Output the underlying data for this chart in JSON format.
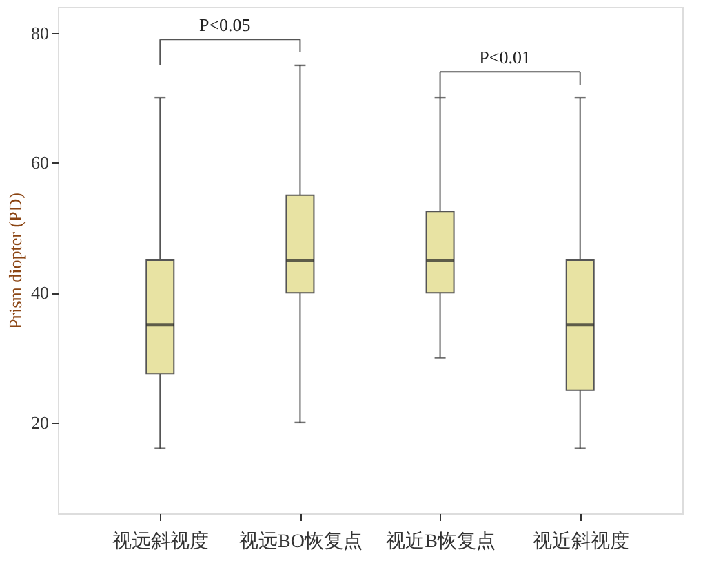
{
  "chart_data": {
    "type": "box",
    "ylabel": "Prism diopter (PD)",
    "categories": [
      "视远斜视度",
      "视远BO恢复点",
      "视近B恢复点",
      "视近斜视度"
    ],
    "boxes": [
      {
        "low": 16,
        "q1": 27.5,
        "median": 35,
        "q3": 45,
        "high": 70
      },
      {
        "low": 20,
        "q1": 40,
        "median": 45,
        "q3": 55,
        "high": 75
      },
      {
        "low": 30,
        "q1": 40,
        "median": 45,
        "q3": 52.5,
        "high": 70
      },
      {
        "low": 16,
        "q1": 25,
        "median": 35,
        "q3": 45,
        "high": 70
      }
    ],
    "color": "#e8e3a3",
    "ylim": [
      6,
      84
    ],
    "yticks": [
      20,
      40,
      60,
      80
    ],
    "annotations": [
      "P<0.05",
      "P<0.01"
    ],
    "grid": false
  }
}
